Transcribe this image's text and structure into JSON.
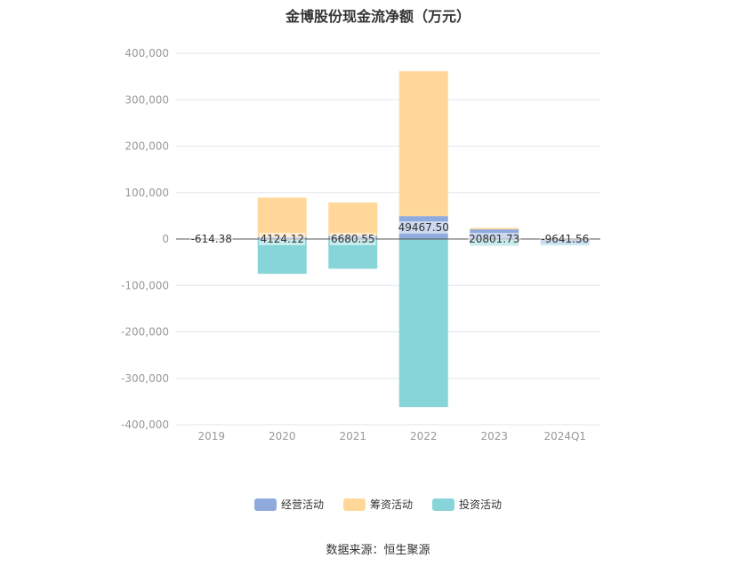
{
  "title": "金博股份现金流净额（万元）",
  "source": "数据来源：恒生聚源",
  "colors": {
    "operating": "#8FAADC",
    "financing": "#FFD899",
    "investing": "#88D5D9"
  },
  "chart_data": {
    "type": "bar",
    "stacked": true,
    "title": "金博股份现金流净额（万元）",
    "categories": [
      "2019",
      "2020",
      "2021",
      "2022",
      "2023",
      "2024Q1"
    ],
    "ylim": [
      -400000,
      400000
    ],
    "yticks": [
      400000,
      300000,
      200000,
      100000,
      0,
      -100000,
      -200000,
      -300000,
      -400000
    ],
    "ytick_labels": [
      "400,000",
      "300,000",
      "200,000",
      "100,000",
      "0",
      "-100,000",
      "-200,000",
      "-300,000",
      "-400,000"
    ],
    "grid": true,
    "legend_position": "bottom",
    "series": [
      {
        "name": "经营活动",
        "key": "operating",
        "values": [
          -614.38,
          4124.12,
          6680.55,
          49467.5,
          20801.73,
          -9641.56
        ]
      },
      {
        "name": "筹资活动",
        "key": "financing",
        "values": [
          0,
          85000,
          72000,
          312000,
          3000,
          2000
        ]
      },
      {
        "name": "投资活动",
        "key": "investing",
        "values": [
          0,
          -75000,
          -64000,
          -362000,
          -14000,
          -4000
        ]
      }
    ],
    "data_labels": [
      "-614.38",
      "4124.12",
      "6680.55",
      "49467.50",
      "20801.73",
      "-9641.56"
    ]
  }
}
